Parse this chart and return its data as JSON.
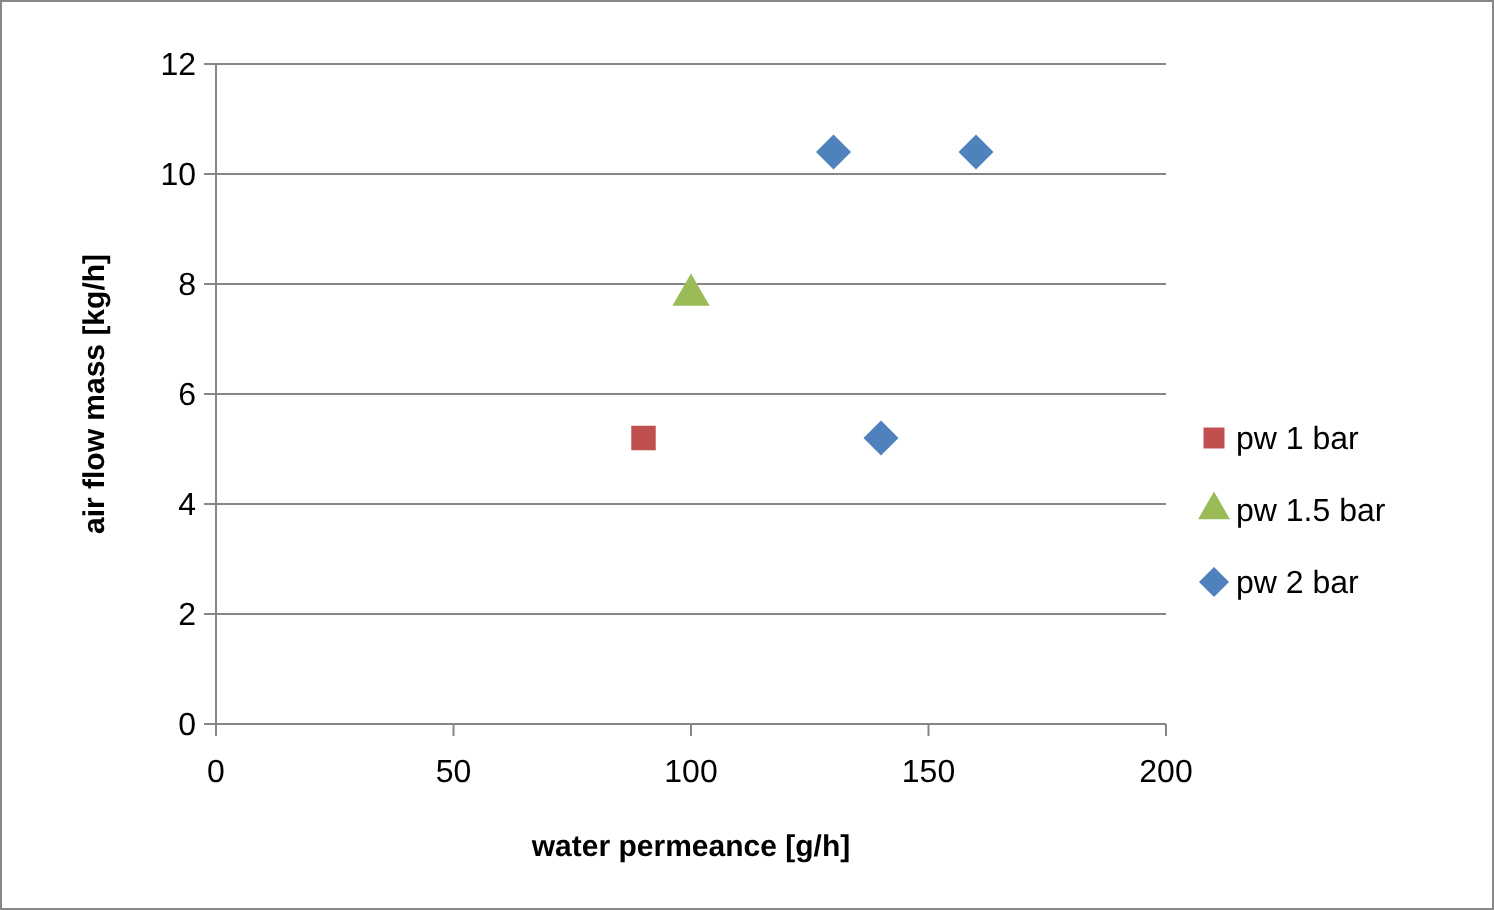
{
  "chart_data": {
    "type": "scatter",
    "xlabel": "water permeance [g/h]",
    "ylabel": "air flow mass [kg/h]",
    "xlim": [
      0,
      200
    ],
    "xticks": [
      0,
      50,
      100,
      150,
      200
    ],
    "ylim": [
      0,
      12
    ],
    "yticks": [
      0,
      2,
      4,
      6,
      8,
      10,
      12
    ],
    "grid": "y",
    "legend": "right",
    "series": [
      {
        "name": "pw 1 bar",
        "color": "#c0504d",
        "marker": "square",
        "x": [
          90
        ],
        "values": [
          5.2
        ]
      },
      {
        "name": "pw 1.5 bar",
        "color": "#9bbb59",
        "marker": "triangle",
        "x": [
          100
        ],
        "values": [
          7.8
        ]
      },
      {
        "name": "pw 2 bar",
        "color": "#4f81bd",
        "marker": "diamond",
        "x": [
          130,
          160,
          140
        ],
        "values": [
          10.4,
          10.4,
          5.2
        ]
      }
    ]
  }
}
